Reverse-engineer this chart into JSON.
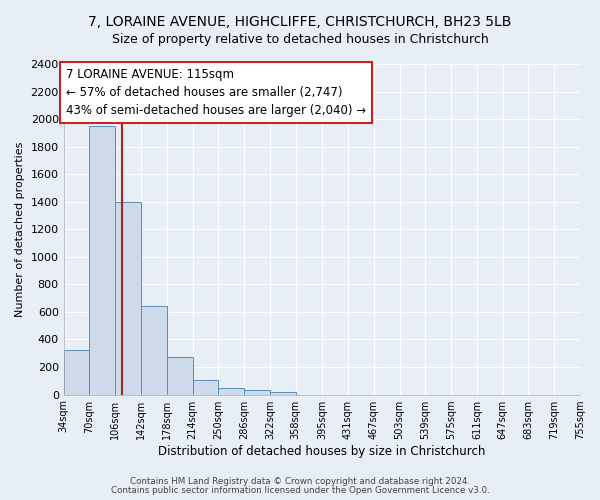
{
  "title1": "7, LORAINE AVENUE, HIGHCLIFFE, CHRISTCHURCH, BH23 5LB",
  "title2": "Size of property relative to detached houses in Christchurch",
  "xlabel": "Distribution of detached houses by size in Christchurch",
  "ylabel": "Number of detached properties",
  "footer1": "Contains HM Land Registry data © Crown copyright and database right 2024.",
  "footer2": "Contains public sector information licensed under the Open Government Licence v3.0.",
  "bin_edges": [
    34,
    70,
    106,
    142,
    178,
    214,
    250,
    286,
    322,
    358,
    395,
    431,
    467,
    503,
    539,
    575,
    611,
    647,
    683,
    719,
    755
  ],
  "bin_heights": [
    325,
    1950,
    1400,
    645,
    275,
    105,
    50,
    35,
    20,
    0,
    0,
    0,
    0,
    0,
    0,
    0,
    0,
    0,
    0,
    0
  ],
  "bar_color": "#cddaea",
  "bar_edge_color": "#5b8db8",
  "property_size": 115,
  "vline_color": "#aa2222",
  "annotation_line1": "7 LORAINE AVENUE: 115sqm",
  "annotation_line2": "← 57% of detached houses are smaller (2,747)",
  "annotation_line3": "43% of semi-detached houses are larger (2,040) →",
  "annotation_box_edgecolor": "#cc2222",
  "annotation_box_facecolor": "#ffffff",
  "ylim": [
    0,
    2400
  ],
  "tick_labels": [
    "34sqm",
    "70sqm",
    "106sqm",
    "142sqm",
    "178sqm",
    "214sqm",
    "250sqm",
    "286sqm",
    "322sqm",
    "358sqm",
    "395sqm",
    "431sqm",
    "467sqm",
    "503sqm",
    "539sqm",
    "575sqm",
    "611sqm",
    "647sqm",
    "683sqm",
    "719sqm",
    "755sqm"
  ],
  "bg_color": "#e8eef5",
  "grid_color": "#ffffff",
  "title1_fontsize": 10,
  "title2_fontsize": 9,
  "annotation_fontsize": 8.5,
  "yticks": [
    0,
    200,
    400,
    600,
    800,
    1000,
    1200,
    1400,
    1600,
    1800,
    2000,
    2200,
    2400
  ]
}
